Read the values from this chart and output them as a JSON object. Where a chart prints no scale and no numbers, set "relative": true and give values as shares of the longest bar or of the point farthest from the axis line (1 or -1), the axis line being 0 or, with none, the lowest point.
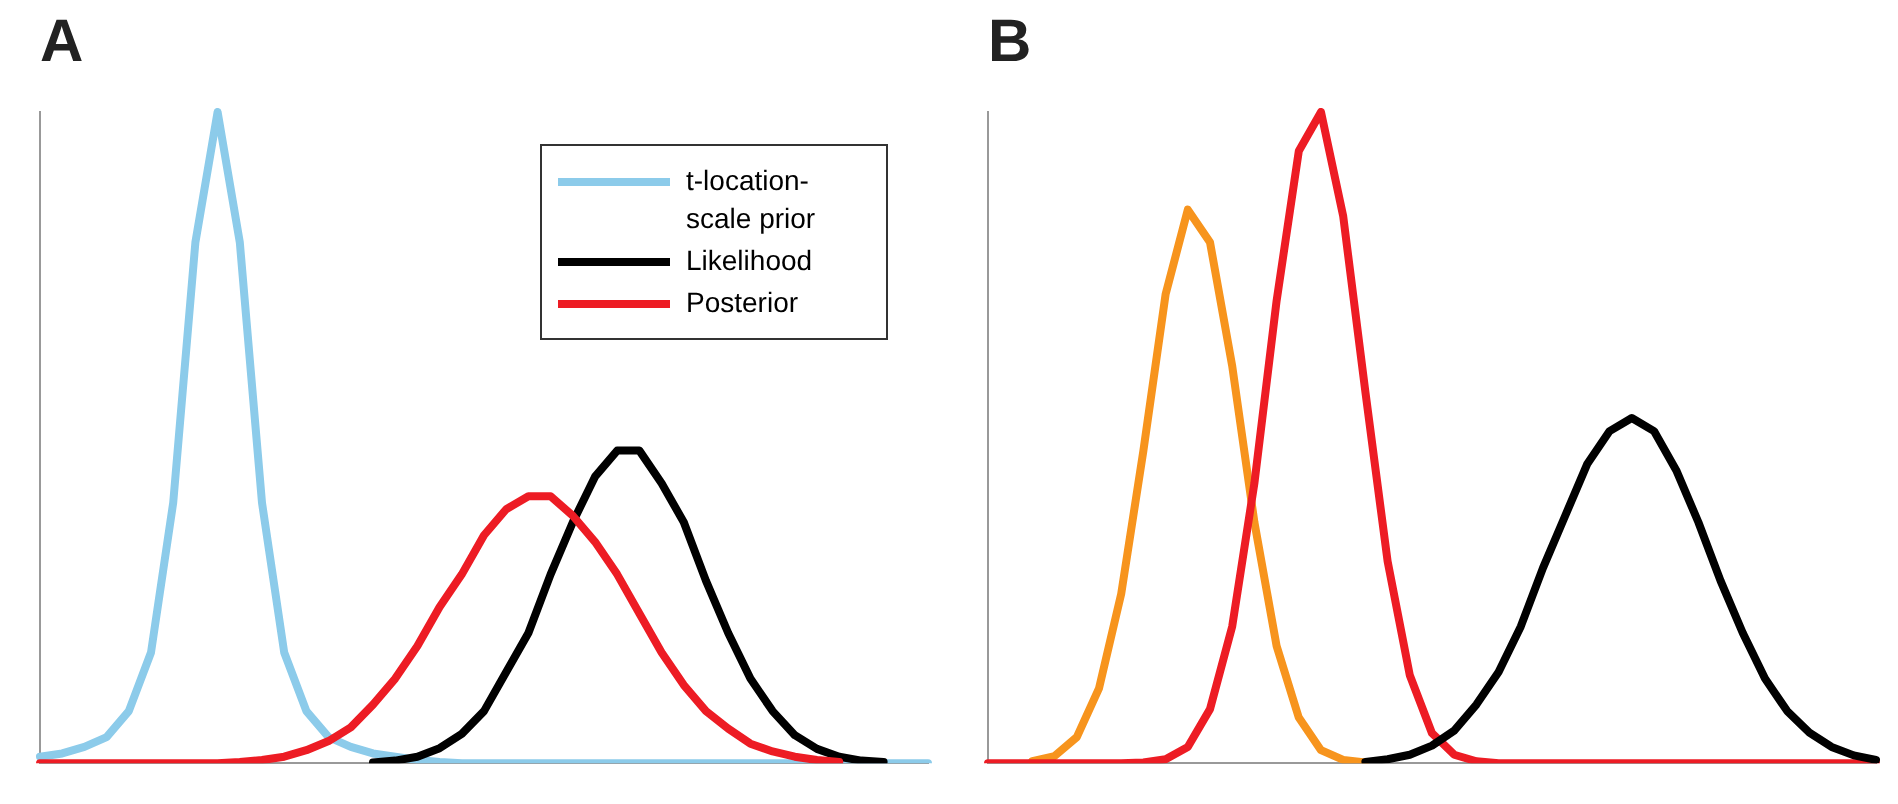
{
  "chart_data": [
    {
      "type": "line",
      "title": "A",
      "relative": true,
      "legend": "top right",
      "grid": false,
      "categories": [
        null,
        null,
        null,
        null,
        null,
        null,
        null,
        null,
        null,
        null,
        null,
        null,
        null,
        null,
        null,
        null,
        null,
        null,
        null,
        null,
        null,
        null,
        null,
        null,
        null,
        null,
        null,
        null,
        null,
        null,
        null,
        null,
        null,
        null,
        null,
        null,
        null,
        null,
        null,
        null,
        null
      ],
      "series": [
        {
          "name": "t-location-scale prior",
          "color": "#8ccbea",
          "values": [
            0.01,
            0.015,
            0.025,
            0.04,
            0.08,
            0.17,
            0.4,
            0.8,
            1,
            0.8,
            0.4,
            0.17,
            0.08,
            0.04,
            0.025,
            0.015,
            0.01,
            0.005,
            0.002,
            0,
            0,
            0,
            0,
            0,
            0,
            0,
            0,
            0,
            0,
            0,
            0,
            0,
            0,
            0,
            0,
            0,
            0,
            0,
            0,
            0,
            0
          ]
        },
        {
          "name": "Likelihood",
          "color": "#000000",
          "values": [
            null,
            null,
            null,
            null,
            null,
            null,
            null,
            null,
            null,
            null,
            null,
            null,
            null,
            null,
            null,
            0.001,
            0.004,
            0.01,
            0.023,
            0.045,
            0.08,
            0.14,
            0.2,
            0.29,
            0.37,
            0.44,
            0.48,
            0.48,
            0.43,
            0.37,
            0.28,
            0.2,
            0.13,
            0.08,
            0.043,
            0.022,
            0.01,
            0.004,
            0.002,
            null,
            null
          ]
        },
        {
          "name": "Posterior",
          "color": "#ed1c24",
          "values": [
            0,
            0,
            0,
            0,
            0,
            0,
            0,
            0,
            0,
            0.002,
            0.005,
            0.01,
            0.02,
            0.034,
            0.055,
            0.09,
            0.13,
            0.18,
            0.24,
            0.29,
            0.35,
            0.39,
            0.41,
            0.41,
            0.38,
            0.34,
            0.29,
            0.23,
            0.17,
            0.12,
            0.08,
            0.053,
            0.03,
            0.018,
            0.01,
            0.005,
            0.002,
            null,
            null,
            null,
            null
          ]
        }
      ]
    },
    {
      "type": "line",
      "title": "B",
      "relative": true,
      "grid": false,
      "categories": [
        null,
        null,
        null,
        null,
        null,
        null,
        null,
        null,
        null,
        null,
        null,
        null,
        null,
        null,
        null,
        null,
        null,
        null,
        null,
        null,
        null,
        null,
        null,
        null,
        null,
        null,
        null,
        null,
        null,
        null,
        null,
        null,
        null,
        null,
        null,
        null,
        null,
        null,
        null,
        null,
        null
      ],
      "series": [
        {
          "color": "#f7941d",
          "values": [
            null,
            null,
            0.003,
            0.011,
            0.04,
            0.115,
            0.26,
            0.48,
            0.72,
            0.85,
            0.8,
            0.61,
            0.37,
            0.18,
            0.07,
            0.02,
            0.005,
            0.001,
            null,
            null,
            null,
            null,
            null,
            null,
            null,
            null,
            null,
            null,
            null,
            null,
            null,
            null,
            null,
            null,
            null,
            null,
            null,
            null,
            null,
            null,
            null
          ]
        },
        {
          "color": "#ed1c24",
          "values": [
            0,
            0,
            0,
            0,
            0,
            0,
            0,
            0.001,
            0.006,
            0.025,
            0.083,
            0.21,
            0.43,
            0.71,
            0.94,
            1,
            0.84,
            0.57,
            0.31,
            0.135,
            0.046,
            0.013,
            0.003,
            0,
            0,
            0,
            0,
            0,
            0,
            0,
            0,
            0,
            0,
            0,
            0,
            0,
            0,
            0,
            0,
            0,
            0
          ]
        },
        {
          "color": "#000000",
          "values": [
            null,
            null,
            null,
            null,
            null,
            null,
            null,
            null,
            null,
            null,
            null,
            null,
            null,
            null,
            null,
            null,
            null,
            0.002,
            0.006,
            0.013,
            0.027,
            0.05,
            0.09,
            0.14,
            0.21,
            0.3,
            0.38,
            0.46,
            0.51,
            0.53,
            0.51,
            0.45,
            0.37,
            0.28,
            0.2,
            0.13,
            0.08,
            0.047,
            0.025,
            0.012,
            0.005
          ]
        }
      ]
    }
  ]
}
